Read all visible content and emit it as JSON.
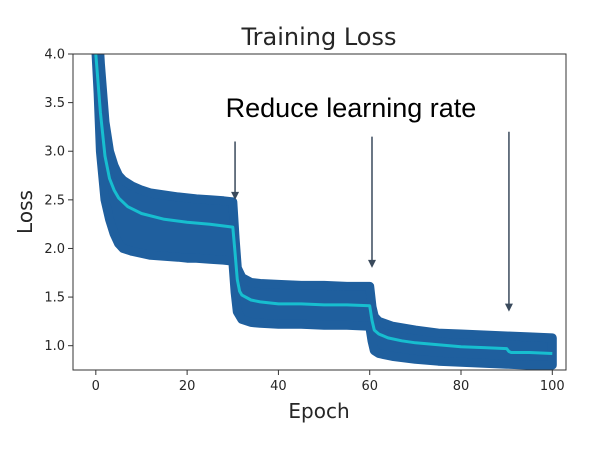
{
  "chart_data": {
    "type": "line",
    "title": "Training Loss",
    "xlabel": "Epoch",
    "ylabel": "Loss",
    "xlim": [
      -5,
      103
    ],
    "ylim": [
      0.75,
      4.0
    ],
    "xticks": [
      0,
      20,
      40,
      60,
      80,
      100
    ],
    "yticks": [
      1.0,
      1.5,
      2.0,
      2.5,
      3.0,
      3.5,
      4.0
    ],
    "ytick_labels": [
      "1.0",
      "1.5",
      "2.0",
      "2.5",
      "3.0",
      "3.5",
      "4.0"
    ],
    "grid": false,
    "series": [
      {
        "role": "spread",
        "color": "#1f5f9e",
        "x": [
          0,
          0.5,
          1,
          2,
          3,
          4,
          5,
          6,
          8,
          10,
          12,
          15,
          18,
          20,
          22,
          25,
          28,
          30,
          30.5,
          31,
          32,
          34,
          36,
          40,
          45,
          50,
          55,
          60,
          60.5,
          61,
          62,
          65,
          70,
          75,
          80,
          85,
          90,
          95,
          100
        ],
        "lower": [
          4.05,
          3.6,
          3.0,
          2.5,
          2.3,
          2.15,
          2.05,
          2.0,
          1.97,
          1.95,
          1.93,
          1.92,
          1.91,
          1.9,
          1.9,
          1.89,
          1.88,
          1.87,
          1.55,
          1.35,
          1.27,
          1.24,
          1.23,
          1.22,
          1.22,
          1.21,
          1.21,
          1.2,
          1.05,
          0.95,
          0.92,
          0.89,
          0.86,
          0.84,
          0.83,
          0.82,
          0.81,
          0.8,
          0.8
        ],
        "upper": [
          4.35,
          4.3,
          3.9,
          3.3,
          3.0,
          2.85,
          2.75,
          2.7,
          2.64,
          2.6,
          2.57,
          2.55,
          2.53,
          2.52,
          2.51,
          2.5,
          2.49,
          2.48,
          2.1,
          1.8,
          1.7,
          1.65,
          1.64,
          1.63,
          1.62,
          1.62,
          1.61,
          1.61,
          1.4,
          1.3,
          1.25,
          1.2,
          1.16,
          1.13,
          1.12,
          1.11,
          1.1,
          1.09,
          1.08
        ]
      },
      {
        "role": "mean",
        "color": "#17becf",
        "x": [
          0,
          1,
          2,
          3,
          4,
          5,
          7,
          10,
          15,
          20,
          25,
          30,
          30.5,
          31,
          31.5,
          32,
          34,
          36,
          40,
          45,
          50,
          55,
          60,
          60.5,
          61,
          62,
          64,
          67,
          70,
          75,
          80,
          85,
          90,
          90.5,
          91,
          95,
          100
        ],
        "y": [
          4.0,
          3.4,
          2.95,
          2.72,
          2.6,
          2.52,
          2.43,
          2.36,
          2.3,
          2.27,
          2.25,
          2.22,
          1.95,
          1.68,
          1.56,
          1.52,
          1.47,
          1.45,
          1.43,
          1.43,
          1.42,
          1.42,
          1.41,
          1.26,
          1.16,
          1.12,
          1.08,
          1.05,
          1.03,
          1.01,
          0.99,
          0.98,
          0.97,
          0.94,
          0.93,
          0.93,
          0.92
        ]
      }
    ],
    "annotation": {
      "text": "Reduce learning rate",
      "arrows": [
        {
          "x": 30.5,
          "y_from": 3.1,
          "y_to": 2.5
        },
        {
          "x": 60.5,
          "y_from": 3.15,
          "y_to": 1.8
        },
        {
          "x": 90.5,
          "y_from": 3.2,
          "y_to": 1.35
        }
      ]
    }
  }
}
